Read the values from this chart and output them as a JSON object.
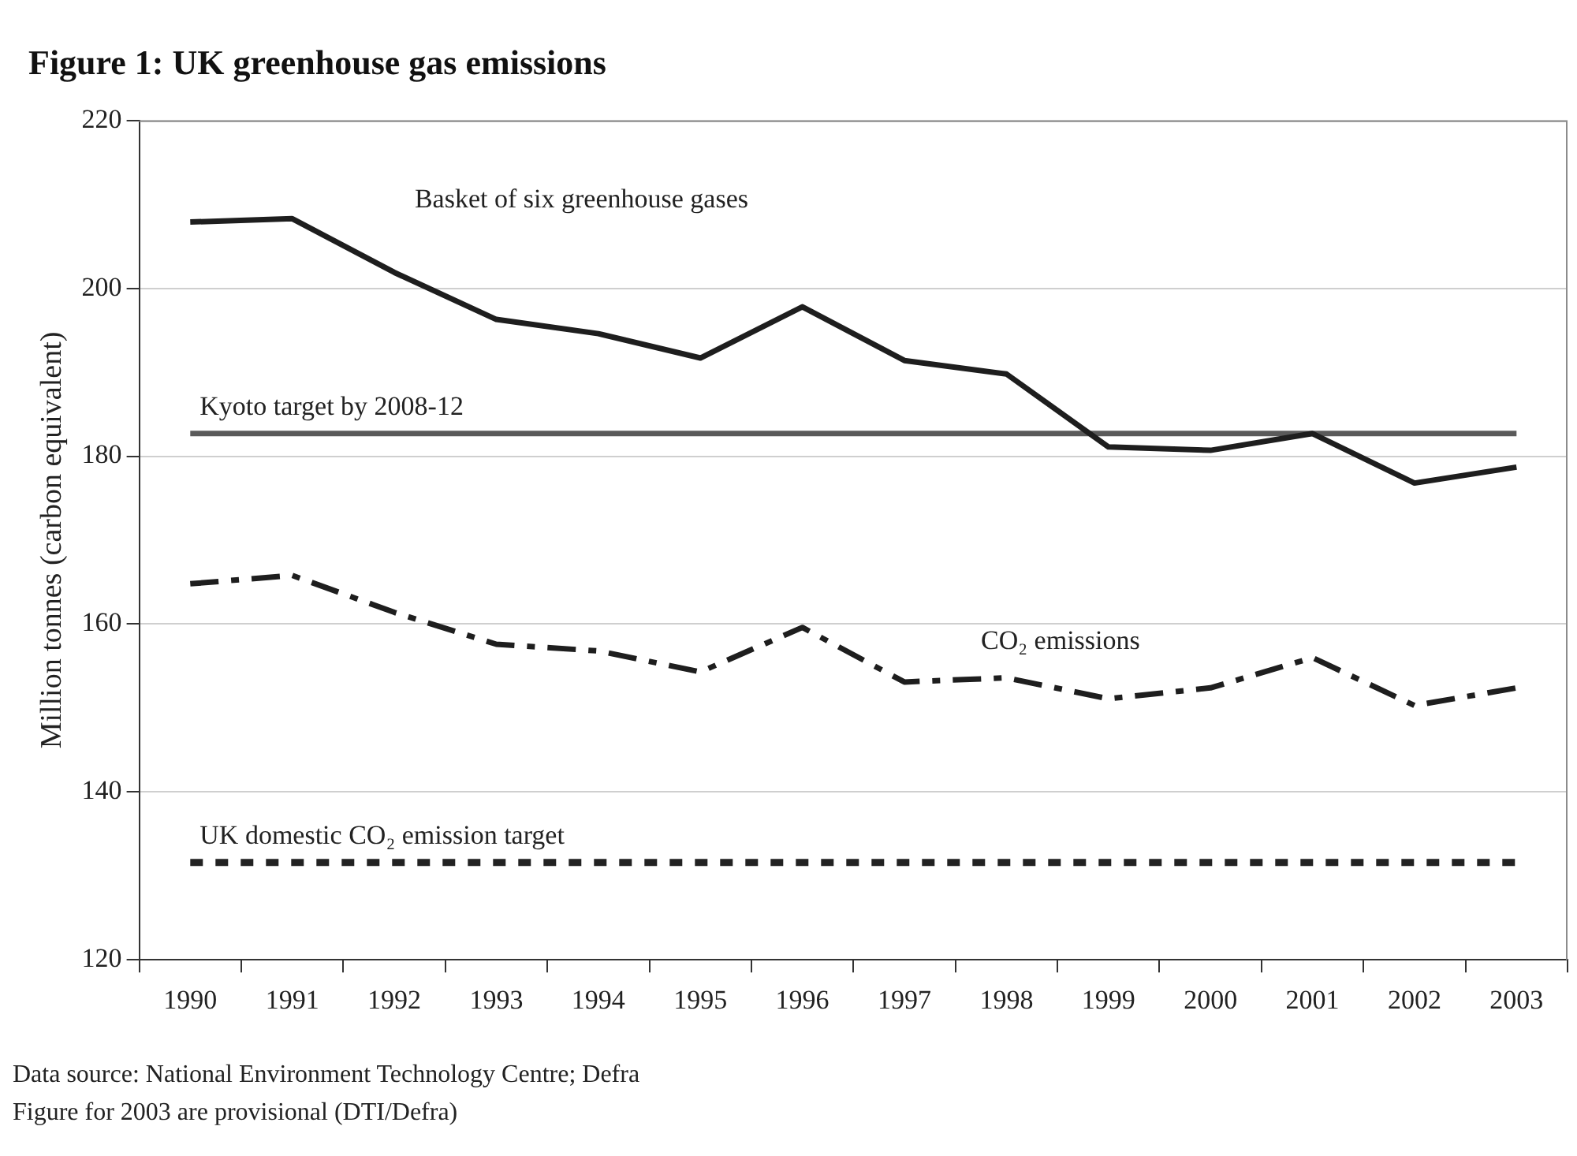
{
  "chart_data": {
    "type": "line",
    "title": "Figure 1: UK greenhouse gas emissions",
    "ylabel": "Million tonnes (carbon equivalent)",
    "categories": [
      "1990",
      "1991",
      "1992",
      "1993",
      "1994",
      "1995",
      "1996",
      "1997",
      "1998",
      "1999",
      "2000",
      "2001",
      "2002",
      "2003"
    ],
    "series": [
      {
        "name": "Basket of six greenhouse gases",
        "color": "#1e1e1e",
        "line_style": "solid",
        "values": [
          207.9,
          208.3,
          201.9,
          196.3,
          194.6,
          191.7,
          197.8,
          191.4,
          189.8,
          181.1,
          180.7,
          182.7,
          176.8,
          178.7
        ]
      },
      {
        "name": "CO₂ emissions",
        "color": "#1e1e1e",
        "line_style": "dashed",
        "values": [
          164.8,
          165.8,
          161.4,
          157.6,
          156.8,
          154.3,
          159.6,
          153.1,
          153.6,
          151.1,
          152.4,
          156,
          150.3,
          152.4
        ]
      }
    ],
    "ref_lines": [
      {
        "axis": "y",
        "value": 182.7,
        "label": "Kyoto target by 2008-12",
        "color": "#5a5a5a",
        "line_style": "solid"
      },
      {
        "axis": "y",
        "value": 131.6,
        "label": "UK domestic CO₂ emission target",
        "color": "#222222",
        "line_style": "dotted"
      }
    ],
    "ylim": [
      120,
      220
    ],
    "yticks": [
      120,
      140,
      160,
      180,
      200,
      220
    ],
    "grid": "y",
    "legend": false,
    "marker": "none",
    "annotations": [
      "Data source: National Environment Technology Centre; Defra",
      "Figure for 2003 are provisional (DTI/Defra)"
    ]
  }
}
